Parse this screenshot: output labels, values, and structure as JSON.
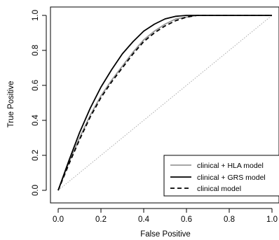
{
  "chart_data": {
    "type": "line",
    "xlabel": "False Positive",
    "ylabel": "True Positive",
    "xlim": [
      0,
      1
    ],
    "ylim": [
      0,
      1
    ],
    "xticks": [
      "0.0",
      "0.2",
      "0.4",
      "0.6",
      "0.8",
      "1.0"
    ],
    "yticks": [
      "0.0",
      "0.2",
      "0.4",
      "0.6",
      "0.8",
      "1.0"
    ],
    "grid": false,
    "legend_position": "bottom-right",
    "diagonal_reference": {
      "from": [
        0,
        0
      ],
      "to": [
        1,
        1
      ],
      "style": "dotted",
      "color": "#aaaaaa"
    },
    "series": [
      {
        "name": "clinical + HLA model",
        "color": "#999999",
        "dash": "solid",
        "x": [
          0,
          0.05,
          0.1,
          0.15,
          0.2,
          0.25,
          0.3,
          0.35,
          0.4,
          0.45,
          0.5,
          0.55,
          0.6,
          0.65,
          0.68,
          0.7,
          0.8,
          0.9,
          1.0
        ],
        "y": [
          0,
          0.16,
          0.3,
          0.43,
          0.54,
          0.63,
          0.71,
          0.79,
          0.86,
          0.91,
          0.95,
          0.98,
          0.99,
          1.0,
          1.0,
          1.0,
          1.0,
          1.0,
          1.0
        ]
      },
      {
        "name": "clinical + GRS model",
        "color": "#000000",
        "dash": "solid",
        "x": [
          0,
          0.05,
          0.1,
          0.15,
          0.2,
          0.25,
          0.3,
          0.35,
          0.4,
          0.45,
          0.5,
          0.55,
          0.6,
          0.62,
          0.7,
          0.8,
          0.9,
          1.0
        ],
        "y": [
          0,
          0.17,
          0.33,
          0.47,
          0.59,
          0.69,
          0.78,
          0.85,
          0.91,
          0.95,
          0.98,
          0.995,
          1.0,
          1.0,
          1.0,
          1.0,
          1.0,
          1.0
        ]
      },
      {
        "name": "clinical model",
        "color": "#000000",
        "dash": "dashed",
        "x": [
          0,
          0.05,
          0.1,
          0.15,
          0.2,
          0.25,
          0.3,
          0.35,
          0.4,
          0.45,
          0.5,
          0.55,
          0.6,
          0.65,
          0.68,
          0.7,
          0.8,
          0.9,
          1.0
        ],
        "y": [
          0,
          0.15,
          0.29,
          0.42,
          0.53,
          0.62,
          0.7,
          0.78,
          0.85,
          0.9,
          0.94,
          0.97,
          0.99,
          1.0,
          1.0,
          1.0,
          1.0,
          1.0,
          1.0
        ]
      }
    ]
  }
}
